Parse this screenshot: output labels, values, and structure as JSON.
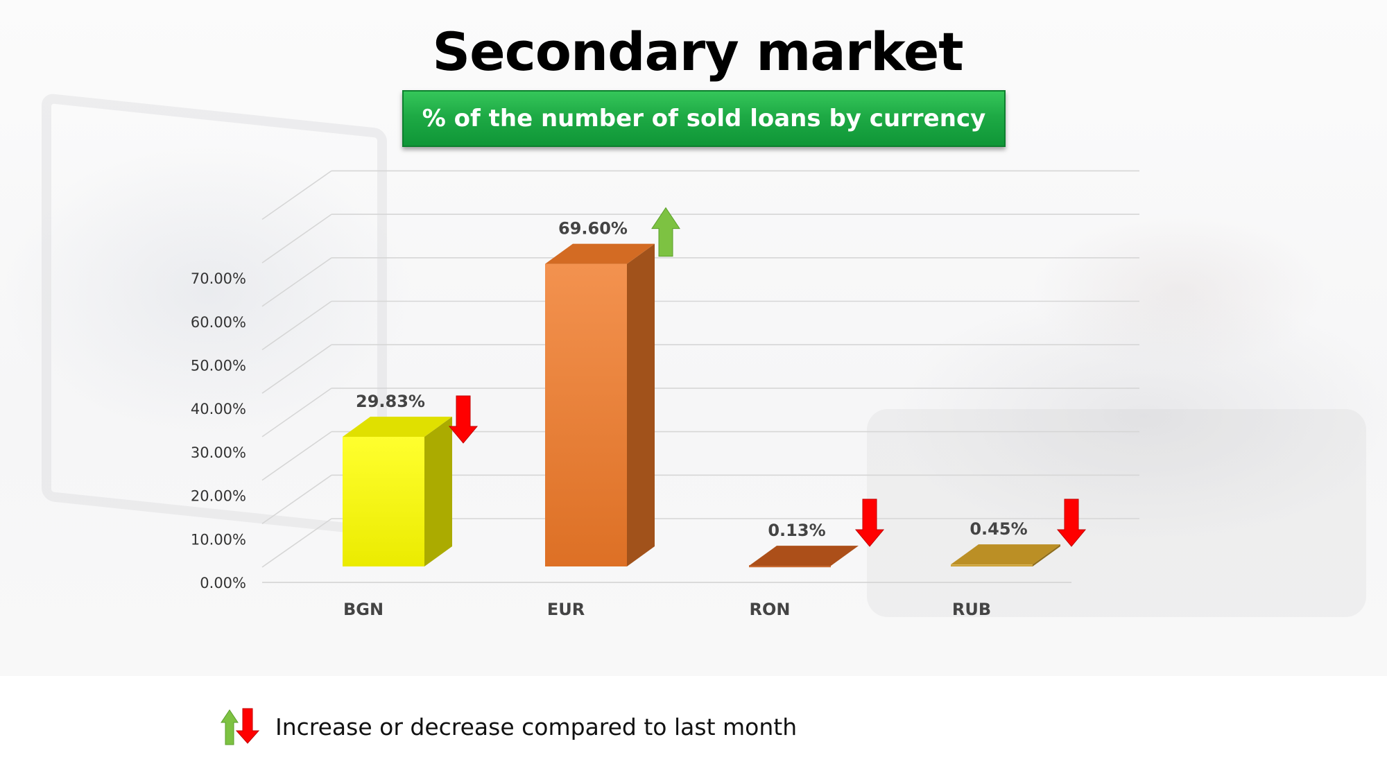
{
  "slide": {
    "title": "Secondary market",
    "subtitle": "% of the number of sold loans by currency"
  },
  "chart_data": {
    "type": "bar",
    "categories": [
      "BGN",
      "EUR",
      "RON",
      "RUB"
    ],
    "values": [
      29.83,
      69.6,
      0.13,
      0.45
    ],
    "value_labels": [
      "29.83%",
      "69.60%",
      "0.13%",
      "0.45%"
    ],
    "trend": [
      "down",
      "up",
      "down",
      "down"
    ],
    "bar_colors": [
      "#ffff00",
      "#f07a28",
      "#c45a1c",
      "#d4a32a"
    ],
    "ytick_values": [
      0,
      10,
      20,
      30,
      40,
      50,
      60,
      70
    ],
    "ytick_labels": [
      "0.00%",
      "10.00%",
      "20.00%",
      "30.00%",
      "40.00%",
      "50.00%",
      "60.00%",
      "70.00%"
    ],
    "ylim": [
      0,
      80
    ],
    "grid": true,
    "title": "",
    "xlabel": "",
    "ylabel": ""
  },
  "legend": {
    "text": "Increase or decrease compared to last month"
  },
  "colors": {
    "increase": "#7dc242",
    "decrease": "#ff0000",
    "subtitle_bg": "#1eaa45"
  }
}
